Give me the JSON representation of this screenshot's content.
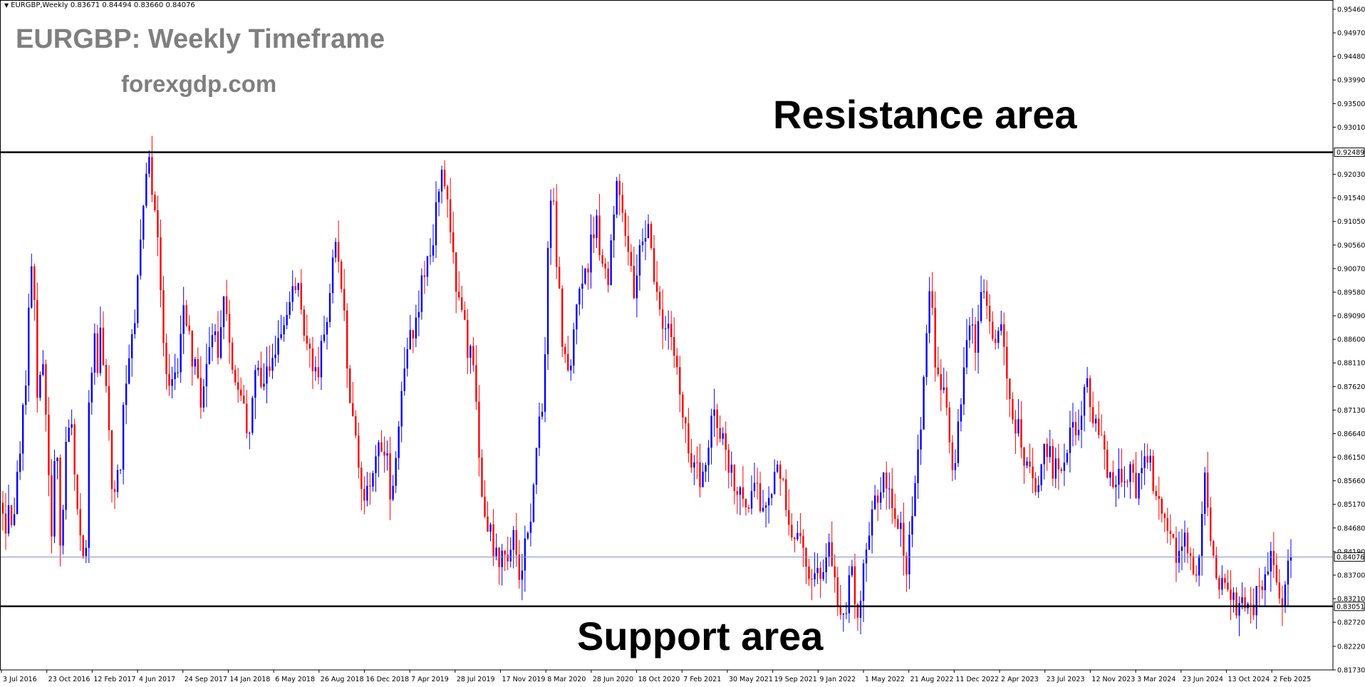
{
  "header": {
    "symbol": "EURGBP,Weekly",
    "ohlc": "0.83671 0.84494 0.83660 0.84076"
  },
  "annotations": {
    "title": "EURGBP: Weekly Timeframe",
    "website": "forexgdp.com",
    "resistance_label": "Resistance area",
    "support_label": "Support area"
  },
  "colors": {
    "background": "#ffffff",
    "bull": "#0000ff",
    "bear": "#ff0000",
    "level_line": "#000000",
    "current_price_line": "#7b8ec8",
    "text_watermark": "#7f7f7f"
  },
  "chart_data": {
    "type": "candlestick",
    "timeframe": "Weekly",
    "symbol": "EURGBP",
    "ylim": [
      0.8173,
      0.9546
    ],
    "y_ticks": [
      "0.95460",
      "0.94970",
      "0.94480",
      "0.93990",
      "0.93500",
      "0.93010",
      "0.92030",
      "0.91540",
      "0.91050",
      "0.90560",
      "0.90070",
      "0.89580",
      "0.89090",
      "0.88600",
      "0.88110",
      "0.87620",
      "0.87130",
      "0.86640",
      "0.86150",
      "0.85660",
      "0.85170",
      "0.84680",
      "0.84190",
      "0.83700",
      "0.83210",
      "0.82720",
      "0.82220",
      "0.81730"
    ],
    "x_ticks": [
      "3 Jul 2016",
      "23 Oct 2016",
      "12 Feb 2017",
      "4 Jun 2017",
      "24 Sep 2017",
      "14 Jan 2018",
      "6 May 2018",
      "26 Aug 2018",
      "16 Dec 2018",
      "7 Apr 2019",
      "28 Jul 2019",
      "17 Nov 2019",
      "8 Mar 2020",
      "28 Jun 2020",
      "18 Oct 2020",
      "7 Feb 2021",
      "30 May 2021",
      "19 Sep 2021",
      "9 Jan 2022",
      "1 May 2022",
      "21 Aug 2022",
      "11 Dec 2022",
      "2 Apr 2023",
      "23 Jul 2023",
      "12 Nov 2023",
      "3 Mar 2024",
      "23 Jun 2024",
      "13 Oct 2024",
      "2 Feb 2025"
    ],
    "levels": [
      {
        "name": "resistance",
        "value": 0.92489,
        "label": "0.92489"
      },
      {
        "name": "support",
        "value": 0.83051,
        "label": "0.83051"
      }
    ],
    "current_price": {
      "value": 0.84076,
      "label": "0.84076"
    },
    "price_path": [
      [
        0.852,
        0.844,
        0.856,
        0.846,
        0.85,
        0.86,
        0.868,
        0.876,
        0.88,
        0.905,
        0.9,
        0.87,
        0.882,
        0.879,
        0.87,
        0.86,
        0.846,
        0.862,
        0.864
      ],
      [
        0.836,
        0.86,
        0.868,
        0.872,
        0.86,
        0.848,
        0.848,
        0.844,
        0.84,
        0.876,
        0.879,
        0.886,
        0.88,
        0.888,
        0.875,
        0.878,
        0.858,
        0.855,
        0.856
      ],
      [
        0.856,
        0.871,
        0.876,
        0.879,
        0.885,
        0.89,
        0.9,
        0.908,
        0.916,
        0.924,
        0.92,
        0.915,
        0.91,
        0.9,
        0.885,
        0.88,
        0.878,
        0.88,
        0.882
      ],
      [
        0.882,
        0.888,
        0.895,
        0.888,
        0.885,
        0.88,
        0.878,
        0.872,
        0.876,
        0.88,
        0.885,
        0.887,
        0.89,
        0.885,
        0.887,
        0.893,
        0.89,
        0.883,
        0.878
      ],
      [
        0.878,
        0.874,
        0.872,
        0.869,
        0.866,
        0.872,
        0.878,
        0.879,
        0.875,
        0.874,
        0.878,
        0.881,
        0.883,
        0.882,
        0.885,
        0.887,
        0.89,
        0.895,
        0.9
      ],
      [
        0.9,
        0.896,
        0.89,
        0.885,
        0.888,
        0.884,
        0.88,
        0.878,
        0.882,
        0.887,
        0.89,
        0.895,
        0.899,
        0.904,
        0.901,
        0.896,
        0.89,
        0.878,
        0.87
      ],
      [
        0.87,
        0.865,
        0.86,
        0.856,
        0.854,
        0.852,
        0.856,
        0.86,
        0.862,
        0.866,
        0.864,
        0.86,
        0.852,
        0.855,
        0.862,
        0.87,
        0.878,
        0.882,
        0.886
      ],
      [
        0.886,
        0.892,
        0.894,
        0.896,
        0.899,
        0.9,
        0.903,
        0.908,
        0.912,
        0.92,
        0.924,
        0.918,
        0.91,
        0.905,
        0.9,
        0.895,
        0.892,
        0.89,
        0.885
      ],
      [
        0.885,
        0.88,
        0.87,
        0.86,
        0.855,
        0.85,
        0.848,
        0.846,
        0.842,
        0.84,
        0.838,
        0.842,
        0.84,
        0.844,
        0.848,
        0.84,
        0.835,
        0.84,
        0.846
      ],
      [
        0.846,
        0.852,
        0.86,
        0.865,
        0.87,
        0.875,
        0.9,
        0.91,
        0.92,
        0.905,
        0.895,
        0.885,
        0.88,
        0.876,
        0.885,
        0.89,
        0.893,
        0.897,
        0.9
      ],
      [
        0.9,
        0.905,
        0.908,
        0.91,
        0.906,
        0.902,
        0.899,
        0.9,
        0.905,
        0.912,
        0.918,
        0.915,
        0.91,
        0.903,
        0.9,
        0.898,
        0.896,
        0.903,
        0.908
      ],
      [
        0.908,
        0.91,
        0.905,
        0.9,
        0.895,
        0.89,
        0.888,
        0.892,
        0.89,
        0.886,
        0.882,
        0.875,
        0.87,
        0.868,
        0.865,
        0.862,
        0.86,
        0.858,
        0.856
      ],
      [
        0.856,
        0.86,
        0.87,
        0.872,
        0.87,
        0.868,
        0.865,
        0.862,
        0.86,
        0.858,
        0.856,
        0.854,
        0.856,
        0.853,
        0.85,
        0.852,
        0.856,
        0.854,
        0.852
      ],
      [
        0.852,
        0.849,
        0.851,
        0.853,
        0.856,
        0.858,
        0.856,
        0.854,
        0.85,
        0.846,
        0.844,
        0.848,
        0.846,
        0.842,
        0.84,
        0.838,
        0.836,
        0.835,
        0.838
      ],
      [
        0.838,
        0.84,
        0.843,
        0.842,
        0.838,
        0.835,
        0.832,
        0.83,
        0.828,
        0.833,
        0.838,
        0.834,
        0.83,
        0.832,
        0.838,
        0.842,
        0.846,
        0.85,
        0.852
      ],
      [
        0.852,
        0.856,
        0.858,
        0.856,
        0.854,
        0.85,
        0.848,
        0.846,
        0.843,
        0.84,
        0.845,
        0.85,
        0.856,
        0.862,
        0.87,
        0.88,
        0.892,
        0.898,
        0.88
      ],
      [
        0.88,
        0.876,
        0.874,
        0.87,
        0.865,
        0.86,
        0.862,
        0.87,
        0.878,
        0.885,
        0.89,
        0.887,
        0.885,
        0.888,
        0.892,
        0.897,
        0.895,
        0.89,
        0.886
      ],
      [
        0.886,
        0.888,
        0.886,
        0.88,
        0.876,
        0.873,
        0.87,
        0.868,
        0.865,
        0.862,
        0.86,
        0.858,
        0.856,
        0.854,
        0.856,
        0.86,
        0.862,
        0.864,
        0.86
      ],
      [
        0.86,
        0.858,
        0.856,
        0.86,
        0.864,
        0.868,
        0.87,
        0.868,
        0.87,
        0.872,
        0.875,
        0.876,
        0.872,
        0.87,
        0.868,
        0.865,
        0.862,
        0.859,
        0.857
      ],
      [
        0.857,
        0.858,
        0.86,
        0.856,
        0.855,
        0.856,
        0.858,
        0.857,
        0.855,
        0.856,
        0.86,
        0.862,
        0.86,
        0.858,
        0.855,
        0.852,
        0.85,
        0.848,
        0.845
      ],
      [
        0.845,
        0.842,
        0.84,
        0.843,
        0.846,
        0.844,
        0.842,
        0.84,
        0.838,
        0.84,
        0.848,
        0.856,
        0.85,
        0.846,
        0.842,
        0.838,
        0.836,
        0.833,
        0.832
      ],
      [
        0.832,
        0.834,
        0.83,
        0.829,
        0.831,
        0.833,
        0.83,
        0.829,
        0.832,
        0.834,
        0.833,
        0.835,
        0.839,
        0.842,
        0.838,
        0.836,
        0.835,
        0.833,
        0.835,
        0.84,
        0.8408
      ]
    ]
  }
}
